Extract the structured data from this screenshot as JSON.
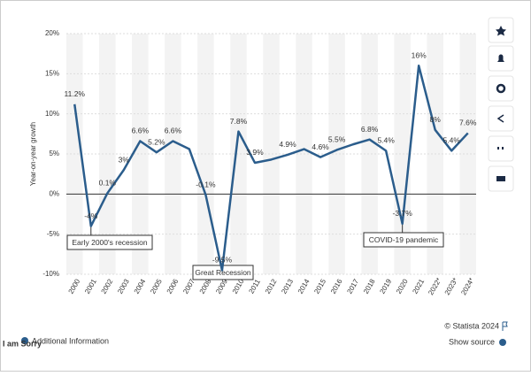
{
  "chart_data": {
    "type": "line",
    "y_label": "Year-on-year growth",
    "categories": [
      "2000",
      "2001",
      "2002",
      "2003",
      "2004",
      "2005",
      "2006",
      "2007",
      "2008",
      "2009",
      "2010",
      "2011",
      "2012",
      "2013",
      "2014",
      "2015",
      "2016",
      "2017",
      "2018",
      "2019",
      "2020",
      "2021",
      "2022*",
      "2023*",
      "2024*"
    ],
    "series": [
      {
        "color": "#2b5d8c",
        "values": [
          11.2,
          -4,
          0.1,
          3,
          6.6,
          5.2,
          6.6,
          5.6,
          -0.1,
          -9.5,
          7.8,
          3.9,
          4.3,
          4.9,
          5.6,
          4.6,
          5.5,
          6.2,
          6.8,
          5.4,
          -3.7,
          16,
          8,
          5.4,
          7.6
        ],
        "value_labels": [
          "11.2%",
          "-4%",
          "0.1%",
          "3%",
          "6.6%",
          "5.2%",
          "6.6%",
          null,
          "-0.1%",
          "-9.5%",
          "7.8%",
          "3.9%",
          null,
          "4.9%",
          null,
          "4.6%",
          "5.5%",
          null,
          "6.8%",
          "5.4%",
          "-3.7%",
          "16%",
          "8%",
          "5.4%",
          "7.6%"
        ]
      }
    ],
    "ylim": [
      -10,
      20
    ],
    "yticks": [
      {
        "value": -10,
        "label": "-10%"
      },
      {
        "value": -5,
        "label": "-5%"
      },
      {
        "value": 0,
        "label": "0%"
      },
      {
        "value": 5,
        "label": "5%"
      },
      {
        "value": 10,
        "label": "10%"
      },
      {
        "value": 15,
        "label": "15%"
      },
      {
        "value": 20,
        "label": "20%"
      }
    ],
    "grid": true,
    "annotations": [
      "Early 2000's recession",
      "Great Recession",
      "COVID-19 pandemic"
    ]
  },
  "footer": {
    "source": "© Statista 2024",
    "additional": "Additional Information",
    "show_source": "Show source",
    "overlay": "I am Sorry"
  }
}
